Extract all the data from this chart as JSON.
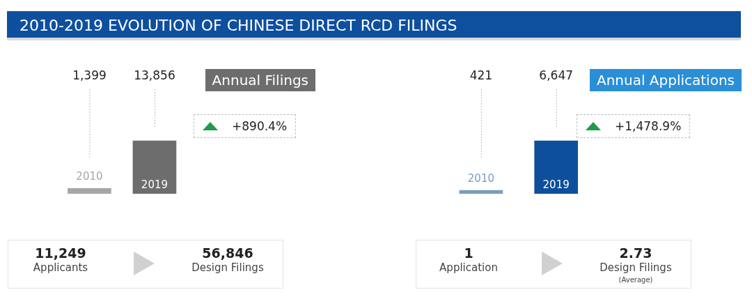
{
  "chart_data": [
    {
      "type": "other",
      "title": "2010-2019 EVOLUTION OF CHINESE DIRECT RCD FILINGS"
    },
    {
      "type": "bar",
      "categories": [
        "2010",
        "2019"
      ],
      "values": [
        1399,
        13856
      ],
      "colors": [
        "#a6a6a6",
        "#6d6d6d"
      ],
      "value_labels": [
        "1,399",
        "13,856"
      ],
      "annotations": [
        "Annual Filings",
        "+890.4%"
      ],
      "tick_labels": false
    },
    {
      "type": "bar",
      "categories": [
        "2010",
        "2019"
      ],
      "values": [
        421,
        6647
      ],
      "colors": [
        "#7b9cc0",
        "#0d4f9c"
      ],
      "value_labels": [
        "421",
        "6,647"
      ],
      "annotations": [
        "Annual Applications",
        "+1,478.9%"
      ],
      "tick_labels": false
    },
    {
      "type": "other",
      "annotations": [
        "11,249",
        "Applicants",
        "56,846",
        "Design Filings"
      ]
    },
    {
      "type": "other",
      "annotations": [
        "1",
        "Application",
        "2.73",
        "Design Filings",
        "(Average)"
      ]
    }
  ]
}
